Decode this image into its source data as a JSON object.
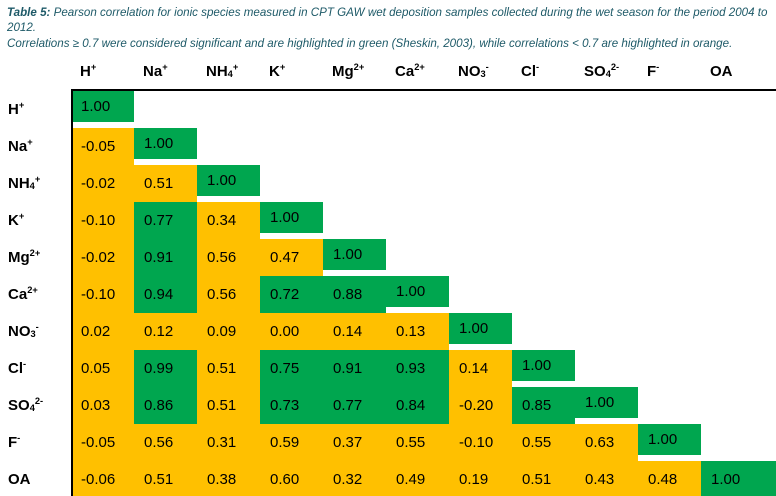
{
  "caption": {
    "label": "Table 5:",
    "line1": " Pearson correlation for ionic species measured in CPT GAW wet deposition samples collected during the wet season for the period 2004 to 2012.",
    "line2": "Correlations ≥ 0.7 were considered significant and are highlighted in green (Sheskin, 2003), while correlations < 0.7 are highlighted in orange."
  },
  "colors": {
    "significant_green": "#00A64F",
    "nonsignificant_orange": "#FFC000",
    "caption_teal": "#1E5A68",
    "border_black": "#000000"
  },
  "ions": [
    {
      "base": "H",
      "sub": "",
      "sup": "+"
    },
    {
      "base": "Na",
      "sub": "",
      "sup": "+"
    },
    {
      "base": "NH",
      "sub": "4",
      "sup": "+"
    },
    {
      "base": "K",
      "sub": "",
      "sup": "+"
    },
    {
      "base": "Mg",
      "sub": "",
      "sup": "2+"
    },
    {
      "base": "Ca",
      "sub": "",
      "sup": "2+"
    },
    {
      "base": "NO",
      "sub": "3",
      "sup": "-"
    },
    {
      "base": "Cl",
      "sub": "",
      "sup": "-"
    },
    {
      "base": "SO",
      "sub": "4",
      "sup": "2-"
    },
    {
      "base": "F",
      "sub": "",
      "sup": "-"
    },
    {
      "base": "OA",
      "sub": "",
      "sup": ""
    }
  ],
  "chart_data": {
    "type": "table",
    "title": "Pearson correlation matrix for ionic species (lower triangle)",
    "row_labels": [
      "H+",
      "Na+",
      "NH4+",
      "K+",
      "Mg2+",
      "Ca2+",
      "NO3-",
      "Cl-",
      "SO42-",
      "F-",
      "OA"
    ],
    "col_labels": [
      "H+",
      "Na+",
      "NH4+",
      "K+",
      "Mg2+",
      "Ca2+",
      "NO3-",
      "Cl-",
      "SO42-",
      "F-",
      "OA"
    ],
    "significance_threshold": 0.7,
    "color_rule": {
      "green": "correlation >= 0.7",
      "orange": "correlation < 0.7"
    },
    "matrix": [
      [
        1.0
      ],
      [
        -0.05,
        1.0
      ],
      [
        -0.02,
        0.51,
        1.0
      ],
      [
        -0.1,
        0.77,
        0.34,
        1.0
      ],
      [
        -0.02,
        0.91,
        0.56,
        0.47,
        1.0
      ],
      [
        -0.1,
        0.94,
        0.56,
        0.72,
        0.88,
        1.0
      ],
      [
        0.02,
        0.12,
        0.09,
        0.0,
        0.14,
        0.13,
        1.0
      ],
      [
        0.05,
        0.99,
        0.51,
        0.75,
        0.91,
        0.93,
        0.14,
        1.0
      ],
      [
        0.03,
        0.86,
        0.51,
        0.73,
        0.77,
        0.84,
        -0.2,
        0.85,
        1.0
      ],
      [
        -0.05,
        0.56,
        0.31,
        0.59,
        0.37,
        0.55,
        -0.1,
        0.55,
        0.63,
        1.0
      ],
      [
        -0.06,
        0.51,
        0.38,
        0.6,
        0.32,
        0.49,
        0.19,
        0.51,
        0.43,
        0.48,
        1.0
      ]
    ]
  }
}
